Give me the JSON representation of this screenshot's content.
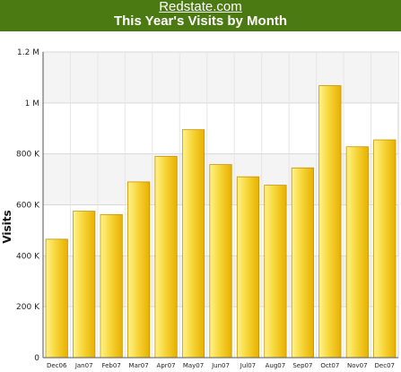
{
  "header": {
    "site_name": "Redstate.com",
    "chart_title": "This Year's Visits by Month"
  },
  "colors": {
    "banner": "#4b7a12",
    "bar_light": "#fff38a",
    "bar_dark": "#e8b000",
    "bar_stroke": "#c99200"
  },
  "chart_data": {
    "type": "bar",
    "title": "This Year's Visits by Month",
    "xlabel": "",
    "ylabel": "Visits",
    "categories": [
      "Dec06",
      "Jan07",
      "Feb07",
      "Mar07",
      "Apr07",
      "May07",
      "Jun07",
      "Jul07",
      "Aug07",
      "Sep07",
      "Oct07",
      "Nov07",
      "Dec07"
    ],
    "values": [
      465000,
      575000,
      562000,
      690000,
      790000,
      895000,
      758000,
      710000,
      677000,
      745000,
      1068000,
      828000,
      855000
    ],
    "ylim": [
      0,
      1200000
    ],
    "yticks": [
      0,
      200000,
      400000,
      600000,
      800000,
      1000000,
      1200000
    ],
    "ytick_labels": [
      "0",
      "200 K",
      "400 K",
      "600 K",
      "800 K",
      "1 M",
      "1.2 M"
    ],
    "grid": true,
    "legend": "none"
  }
}
